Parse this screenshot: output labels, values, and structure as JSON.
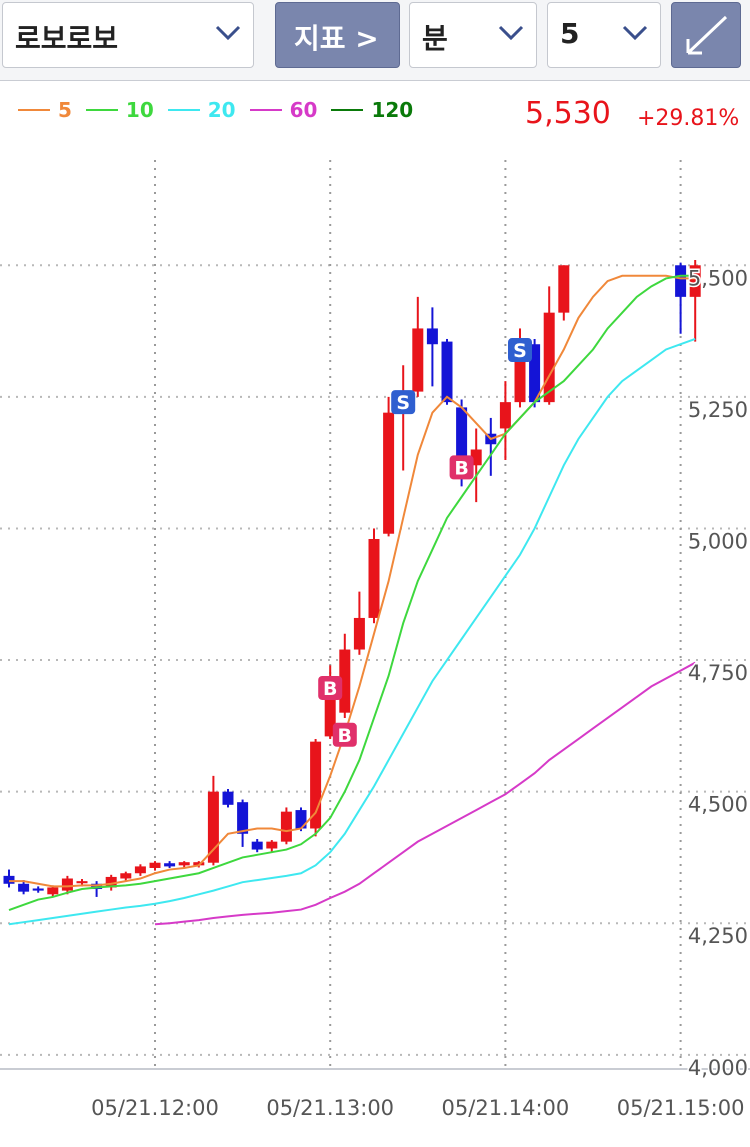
{
  "ui": {
    "symbol": "로보로보",
    "indicator_button": "지표 >",
    "period_unit": "분",
    "period_value": "5",
    "price": "5,530",
    "change": "+29.81%"
  },
  "chart_data": {
    "type": "candlestick",
    "categories": [
      null,
      null,
      null,
      null,
      null,
      null,
      null,
      null,
      null,
      null,
      "05/21.12:00",
      null,
      null,
      null,
      null,
      null,
      null,
      null,
      null,
      null,
      null,
      null,
      "05/21.13:00",
      null,
      null,
      null,
      null,
      null,
      null,
      null,
      null,
      null,
      null,
      null,
      "05/21.14:00",
      null,
      null,
      null,
      null,
      null,
      null,
      null,
      null,
      null,
      null,
      null,
      "05/21.15:00",
      null
    ],
    "open": [
      4340,
      4325,
      4316,
      4305,
      4312,
      4326,
      4325,
      4318,
      4335,
      4345,
      4355,
      4364,
      4360,
      4360,
      4365,
      4500,
      4480,
      4405,
      4392,
      4405,
      4465,
      4430,
      4605,
      4650,
      4770,
      4830,
      4990,
      5220,
      5260,
      5380,
      5355,
      5230,
      5120,
      5180,
      5190,
      5240,
      5350,
      5240,
      5410,
      null,
      null,
      null,
      null,
      null,
      null,
      null,
      5500,
      5440
    ],
    "high": [
      4352,
      4332,
      4320,
      4322,
      4340,
      4334,
      4330,
      4342,
      4348,
      4362,
      4368,
      4368,
      4368,
      4368,
      4530,
      4505,
      4485,
      4410,
      4408,
      4470,
      4470,
      4600,
      4740,
      4800,
      4880,
      5000,
      5250,
      5310,
      5440,
      5420,
      5360,
      5245,
      5190,
      5210,
      5280,
      5380,
      5360,
      5460,
      5500,
      null,
      null,
      null,
      null,
      null,
      null,
      null,
      5505,
      5510
    ],
    "low": [
      4318,
      4305,
      4308,
      4300,
      4305,
      4320,
      4300,
      4312,
      4330,
      4340,
      4350,
      4355,
      4355,
      4356,
      4360,
      4470,
      4395,
      4385,
      4385,
      4400,
      4425,
      4415,
      4600,
      4640,
      4760,
      4820,
      4985,
      5110,
      5250,
      5270,
      5235,
      5080,
      5050,
      5100,
      5130,
      5230,
      5230,
      5235,
      5395,
      null,
      null,
      null,
      null,
      null,
      null,
      null,
      5370,
      5355
    ],
    "close": [
      4325,
      4310,
      4312,
      4318,
      4335,
      4330,
      4315,
      4338,
      4345,
      4358,
      4365,
      4358,
      4366,
      4366,
      4500,
      4475,
      4420,
      4390,
      4405,
      4462,
      4430,
      4595,
      4680,
      4770,
      4830,
      4980,
      5220,
      5260,
      5380,
      5350,
      5240,
      5110,
      5150,
      5160,
      5240,
      5330,
      5240,
      5410,
      5500,
      null,
      null,
      null,
      null,
      null,
      null,
      null,
      5440,
      5500
    ],
    "up_color": "#e8141b",
    "down_color": "#1414d6",
    "series": [
      {
        "name": "5",
        "color": "#f0883a",
        "values": [
          4330,
          4330,
          4325,
          4320,
          4320,
          4322,
          4322,
          4325,
          4330,
          4335,
          4345,
          4352,
          4355,
          4360,
          4390,
          4420,
          4425,
          4430,
          4430,
          4425,
          4430,
          4460,
          4530,
          4610,
          4700,
          4800,
          4900,
          5020,
          5140,
          5220,
          5250,
          5230,
          5200,
          5170,
          5180,
          5210,
          5240,
          5290,
          5340,
          5400,
          5440,
          5470,
          5480,
          5480,
          5480,
          5480,
          5475,
          5475
        ]
      },
      {
        "name": "10",
        "color": "#3ed83e",
        "values": [
          4275,
          4285,
          4295,
          4300,
          4308,
          4315,
          4318,
          4320,
          4322,
          4325,
          4330,
          4335,
          4340,
          4345,
          4355,
          4365,
          4375,
          4380,
          4385,
          4390,
          4400,
          4420,
          4450,
          4500,
          4560,
          4640,
          4720,
          4820,
          4900,
          4960,
          5020,
          5060,
          5100,
          5140,
          5180,
          5210,
          5240,
          5260,
          5280,
          5310,
          5340,
          5380,
          5410,
          5440,
          5460,
          5475,
          5480,
          5480
        ]
      },
      {
        "name": "20",
        "color": "#3ee8f0",
        "values": [
          4248,
          4252,
          4256,
          4260,
          4264,
          4268,
          4272,
          4276,
          4280,
          4283,
          4287,
          4292,
          4298,
          4305,
          4312,
          4320,
          4328,
          4332,
          4336,
          4340,
          4345,
          4360,
          4385,
          4420,
          4465,
          4510,
          4560,
          4610,
          4660,
          4710,
          4750,
          4790,
          4830,
          4870,
          4910,
          4950,
          5000,
          5060,
          5120,
          5170,
          5210,
          5250,
          5280,
          5300,
          5320,
          5340,
          5350,
          5360
        ]
      },
      {
        "name": "60",
        "color": "#d63ac8",
        "values": [
          null,
          null,
          null,
          null,
          null,
          null,
          null,
          null,
          null,
          null,
          4248,
          4250,
          4253,
          4256,
          4260,
          4263,
          4266,
          4268,
          4270,
          4273,
          4276,
          4285,
          4298,
          4310,
          4325,
          4345,
          4365,
          4385,
          4405,
          4420,
          4435,
          4450,
          4465,
          4480,
          4495,
          4515,
          4535,
          4560,
          4580,
          4600,
          4620,
          4640,
          4660,
          4680,
          4700,
          4715,
          4730,
          4745
        ]
      },
      {
        "name": "120",
        "color": "#0a7a0a",
        "values": [
          null,
          null,
          null,
          null,
          null,
          null,
          null,
          null,
          null,
          null,
          null,
          null,
          null,
          null,
          null,
          null,
          null,
          null,
          null,
          null,
          null,
          null,
          null,
          null,
          null,
          null,
          null,
          null,
          null,
          null,
          null,
          null,
          null,
          null,
          null,
          null,
          null,
          null,
          null,
          null,
          null,
          null,
          null,
          null,
          null,
          null,
          null,
          null
        ]
      }
    ],
    "signals": [
      {
        "label": "B",
        "at": 22,
        "value": 4697
      },
      {
        "label": "B",
        "at": 23,
        "value": 4608
      },
      {
        "label": "S",
        "at": 27,
        "value": 5240
      },
      {
        "label": "B",
        "at": 31,
        "value": 5116
      },
      {
        "label": "S",
        "at": 35,
        "value": 5339
      }
    ],
    "buy_color": "#e0306a",
    "sell_color": "#2f5fd0",
    "ylim": [
      3975,
      5700
    ],
    "yticks": [
      {
        "value": 4000,
        "label": "4,000"
      },
      {
        "value": 4250,
        "label": "4,250"
      },
      {
        "value": 4500,
        "label": "4,500"
      },
      {
        "value": 4750,
        "label": "4,750"
      },
      {
        "value": 5000,
        "label": "5,000"
      },
      {
        "value": 5250,
        "label": "5,250"
      },
      {
        "value": 5500,
        "label": "5,500"
      }
    ],
    "grid": true
  }
}
